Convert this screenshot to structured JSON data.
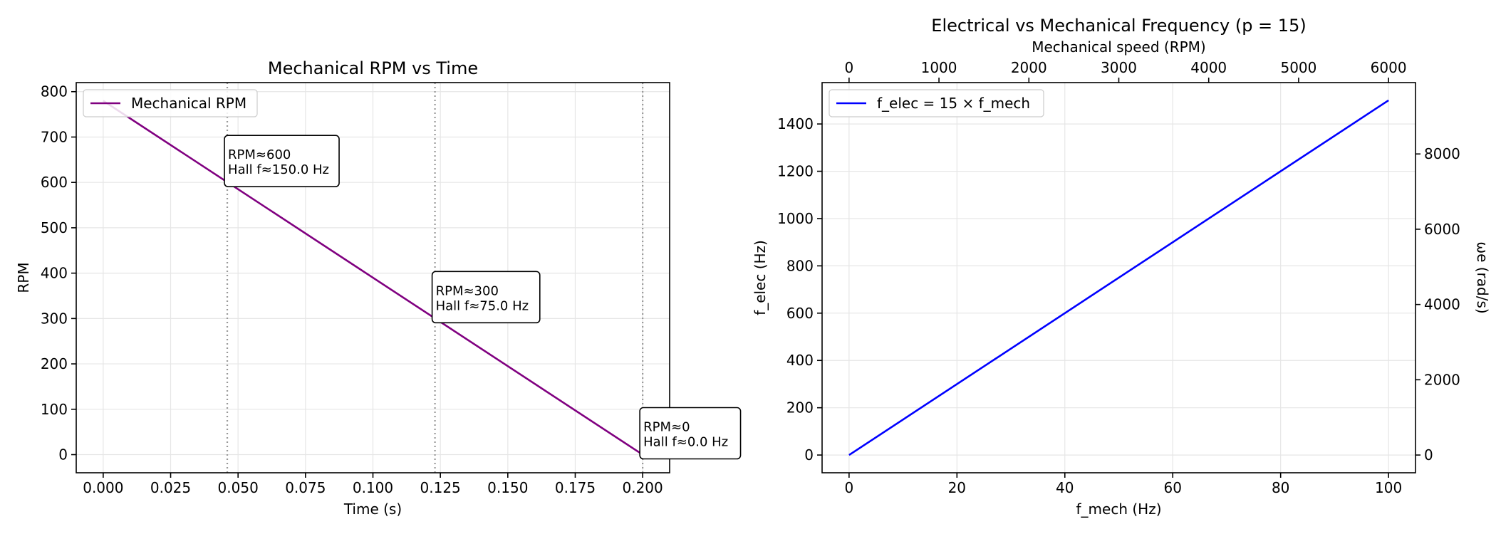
{
  "chart_data": [
    {
      "type": "line",
      "title": "Mechanical RPM vs Time",
      "xlabel": "Time (s)",
      "ylabel": "RPM",
      "xlim": [
        -0.01,
        0.21
      ],
      "ylim": [
        -40,
        820
      ],
      "x_ticks": [
        "0.000",
        "0.025",
        "0.050",
        "0.075",
        "0.100",
        "0.125",
        "0.150",
        "0.175",
        "0.200"
      ],
      "x_tick_values": [
        0,
        0.025,
        0.05,
        0.075,
        0.1,
        0.125,
        0.15,
        0.175,
        0.2
      ],
      "y_ticks": [
        "0",
        "100",
        "200",
        "300",
        "400",
        "500",
        "600",
        "700",
        "800"
      ],
      "y_tick_values": [
        0,
        100,
        200,
        300,
        400,
        500,
        600,
        700,
        800
      ],
      "grid": true,
      "legend_position": "top-left",
      "series": [
        {
          "name": "Mechanical RPM",
          "color": "#800080",
          "x": [
            0,
            0.2
          ],
          "y": [
            780,
            0
          ]
        }
      ],
      "vlines": [
        {
          "x": 0.046,
          "style": "dotted",
          "color": "#999999"
        },
        {
          "x": 0.123,
          "style": "dotted",
          "color": "#999999"
        },
        {
          "x": 0.2,
          "style": "dotted",
          "color": "#999999"
        }
      ],
      "annotations": [
        {
          "x": 0.046,
          "y": 600,
          "lines": [
            "RPM≈600",
            "Hall f≈150.0 Hz"
          ]
        },
        {
          "x": 0.123,
          "y": 300,
          "lines": [
            "RPM≈300",
            "Hall f≈75.0 Hz"
          ]
        },
        {
          "x": 0.2,
          "y": 0,
          "lines": [
            "RPM≈0",
            "Hall f≈0.0 Hz"
          ]
        }
      ]
    },
    {
      "type": "line",
      "title": "Electrical vs Mechanical Frequency (p = 15)",
      "xlabel": "f_mech (Hz)",
      "ylabel": "f_elec (Hz)",
      "top_xlabel": "Mechanical speed (RPM)",
      "right_ylabel": "ωe (rad/s)",
      "xlim": [
        -5,
        105
      ],
      "ylim": [
        -75,
        1575
      ],
      "x_ticks": [
        "0",
        "20",
        "40",
        "60",
        "80",
        "100"
      ],
      "x_tick_values": [
        0,
        20,
        40,
        60,
        80,
        100
      ],
      "y_ticks": [
        "0",
        "200",
        "400",
        "600",
        "800",
        "1000",
        "1200",
        "1400"
      ],
      "y_tick_values": [
        0,
        200,
        400,
        600,
        800,
        1000,
        1200,
        1400
      ],
      "top_x_ticks": [
        "0",
        "1000",
        "2000",
        "3000",
        "4000",
        "5000",
        "6000"
      ],
      "top_x_tick_values": [
        0,
        1000,
        2000,
        3000,
        4000,
        5000,
        6000
      ],
      "right_y_ticks": [
        "0",
        "2000",
        "4000",
        "6000",
        "8000"
      ],
      "right_y_tick_values": [
        0,
        2000,
        4000,
        6000,
        8000
      ],
      "grid": true,
      "legend_position": "top-left",
      "series": [
        {
          "name": "f_elec = 15 × f_mech",
          "color": "#0000ff",
          "x": [
            0,
            100
          ],
          "y": [
            0,
            1500
          ]
        }
      ]
    }
  ]
}
